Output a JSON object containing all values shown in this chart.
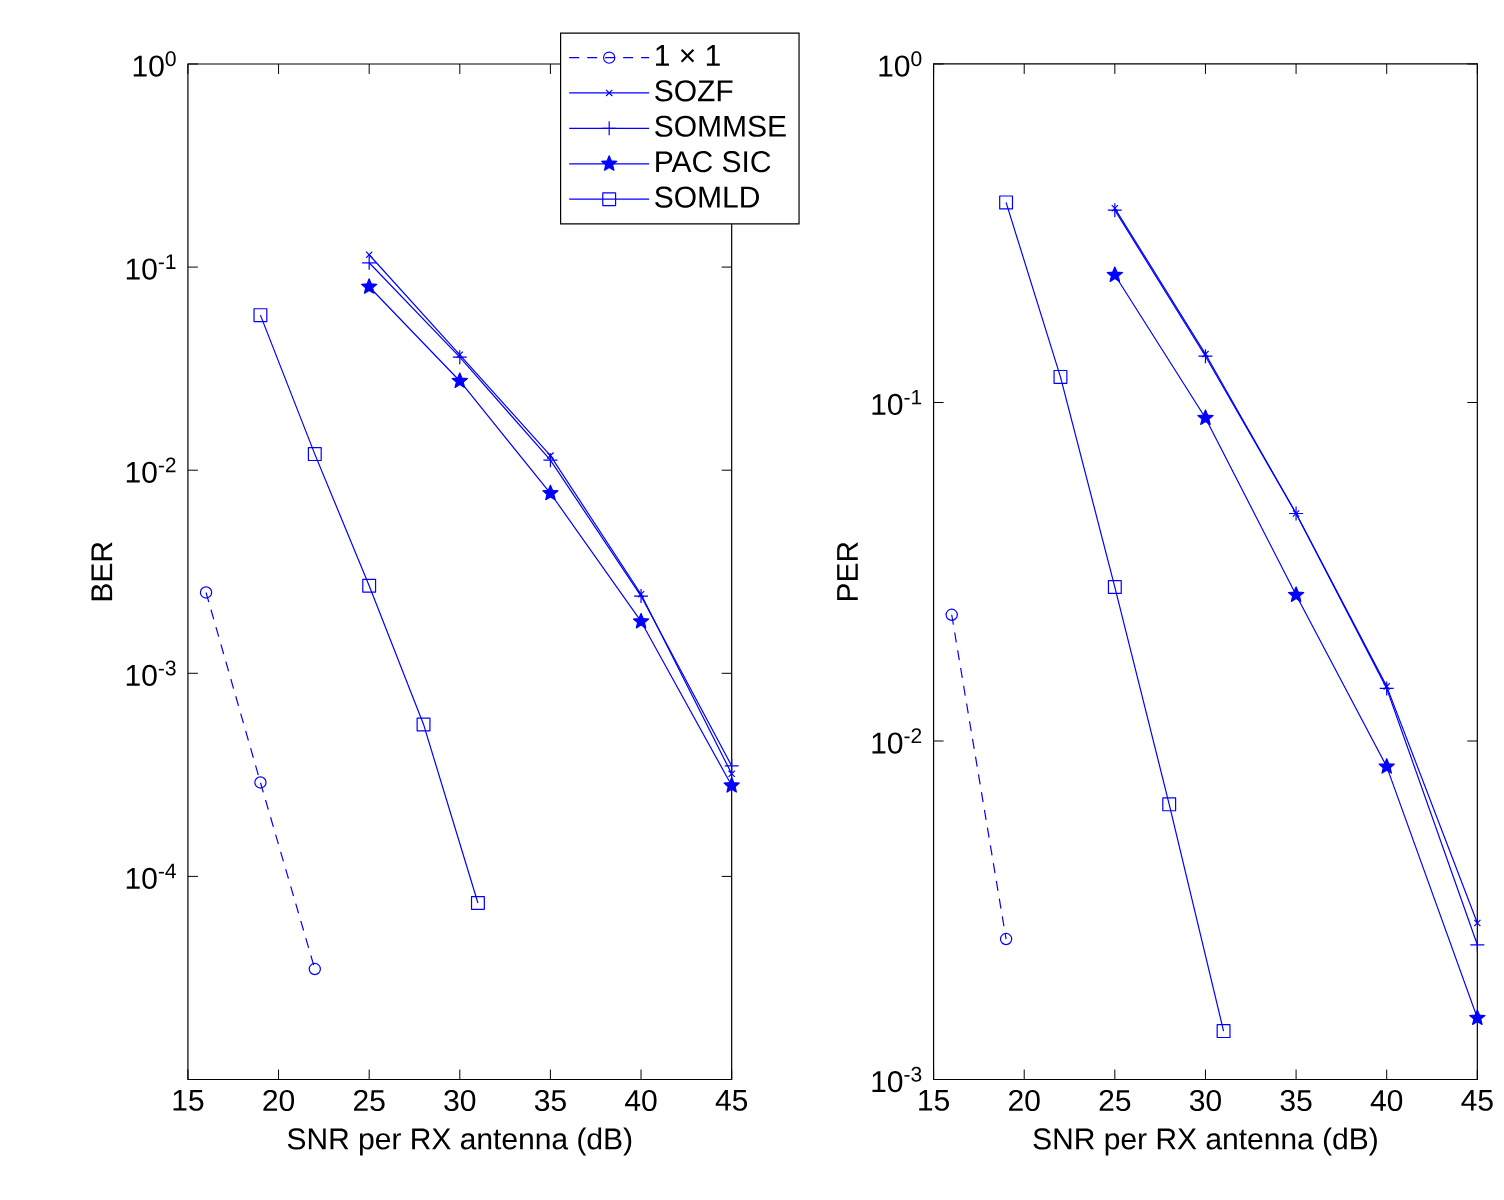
{
  "chart_data": [
    {
      "type": "line",
      "xlabel": "SNR per RX antenna (dB)",
      "ylabel": "BER",
      "log": "y",
      "grid": false,
      "legend": "top right",
      "xlim": [
        15,
        45
      ],
      "xticks": [
        15,
        20,
        25,
        30,
        35,
        40,
        45
      ],
      "ylim": [
        1e-05,
        1
      ],
      "yticks": [
        {
          "value": 1e-05,
          "label": null
        },
        {
          "value": 0.0001,
          "label": "10$^{-4}$"
        },
        {
          "value": 0.001,
          "label": "10$^{-3}$"
        },
        {
          "value": 0.01,
          "label": "10$^{-2}$"
        },
        {
          "value": 0.1,
          "label": "10$^{-1}$"
        },
        {
          "value": 1,
          "label": "10$^{0}$"
        }
      ],
      "series": [
        {
          "name": "1 × 1",
          "color": "#0000ff",
          "marker": "circle",
          "line_style": "dashed",
          "x": [
            16,
            19,
            22
          ],
          "values": [
            0.0025,
            0.00029,
            3.5e-05
          ]
        },
        {
          "name": "SOZF",
          "color": "#0000ff",
          "marker": "cross",
          "line_style": "solid",
          "x": [
            25,
            30,
            35,
            40,
            45
          ],
          "values": [
            0.115,
            0.037,
            0.0118,
            0.00245,
            0.00032
          ]
        },
        {
          "name": "SOMMSE",
          "color": "#0000ff",
          "marker": "plus",
          "line_style": "solid",
          "x": [
            25,
            30,
            35,
            40,
            45
          ],
          "values": [
            0.105,
            0.036,
            0.0112,
            0.0024,
            0.00035
          ]
        },
        {
          "name": "PAC SIC",
          "color": "#0000ff",
          "marker": "star",
          "line_style": "solid",
          "x": [
            25,
            30,
            35,
            40,
            45
          ],
          "values": [
            0.08,
            0.0275,
            0.0077,
            0.0018,
            0.00028
          ]
        },
        {
          "name": "SOMLD",
          "color": "#0000ff",
          "marker": "square",
          "line_style": "solid",
          "x": [
            19,
            22,
            25,
            28,
            31
          ],
          "values": [
            0.058,
            0.012,
            0.0027,
            0.00056,
            7.4e-05
          ]
        }
      ]
    },
    {
      "type": "line",
      "xlabel": "SNR per RX antenna (dB)",
      "ylabel": "PER",
      "log": "y",
      "grid": false,
      "xlim": [
        15,
        45
      ],
      "xticks": [
        15,
        20,
        25,
        30,
        35,
        40,
        45
      ],
      "ylim": [
        0.001,
        1
      ],
      "yticks": [
        {
          "value": 0.001,
          "label": "10$^{-3}$"
        },
        {
          "value": 0.01,
          "label": "10$^{-2}$"
        },
        {
          "value": 0.1,
          "label": "10$^{-1}$"
        },
        {
          "value": 1,
          "label": "10$^{0}$"
        }
      ],
      "series": [
        {
          "color": "#0000ff",
          "marker": "circle",
          "line_style": "dashed",
          "x": [
            16,
            19
          ],
          "values": [
            0.0236,
            0.0026
          ]
        },
        {
          "color": "#0000ff",
          "marker": "cross",
          "line_style": "solid",
          "x": [
            25,
            30,
            35,
            40,
            45
          ],
          "values": [
            0.375,
            0.139,
            0.047,
            0.0145,
            0.0029
          ]
        },
        {
          "color": "#0000ff",
          "marker": "plus",
          "line_style": "solid",
          "x": [
            25,
            30,
            35,
            40,
            45
          ],
          "values": [
            0.37,
            0.137,
            0.047,
            0.0143,
            0.0025
          ]
        },
        {
          "color": "#0000ff",
          "marker": "star",
          "line_style": "solid",
          "x": [
            25,
            30,
            35,
            40,
            45
          ],
          "values": [
            0.238,
            0.09,
            0.027,
            0.0084,
            0.00152
          ]
        },
        {
          "color": "#0000ff",
          "marker": "square",
          "line_style": "solid",
          "x": [
            19,
            22,
            25,
            28,
            31
          ],
          "values": [
            0.39,
            0.119,
            0.0285,
            0.0065,
            0.00139
          ]
        }
      ]
    }
  ]
}
